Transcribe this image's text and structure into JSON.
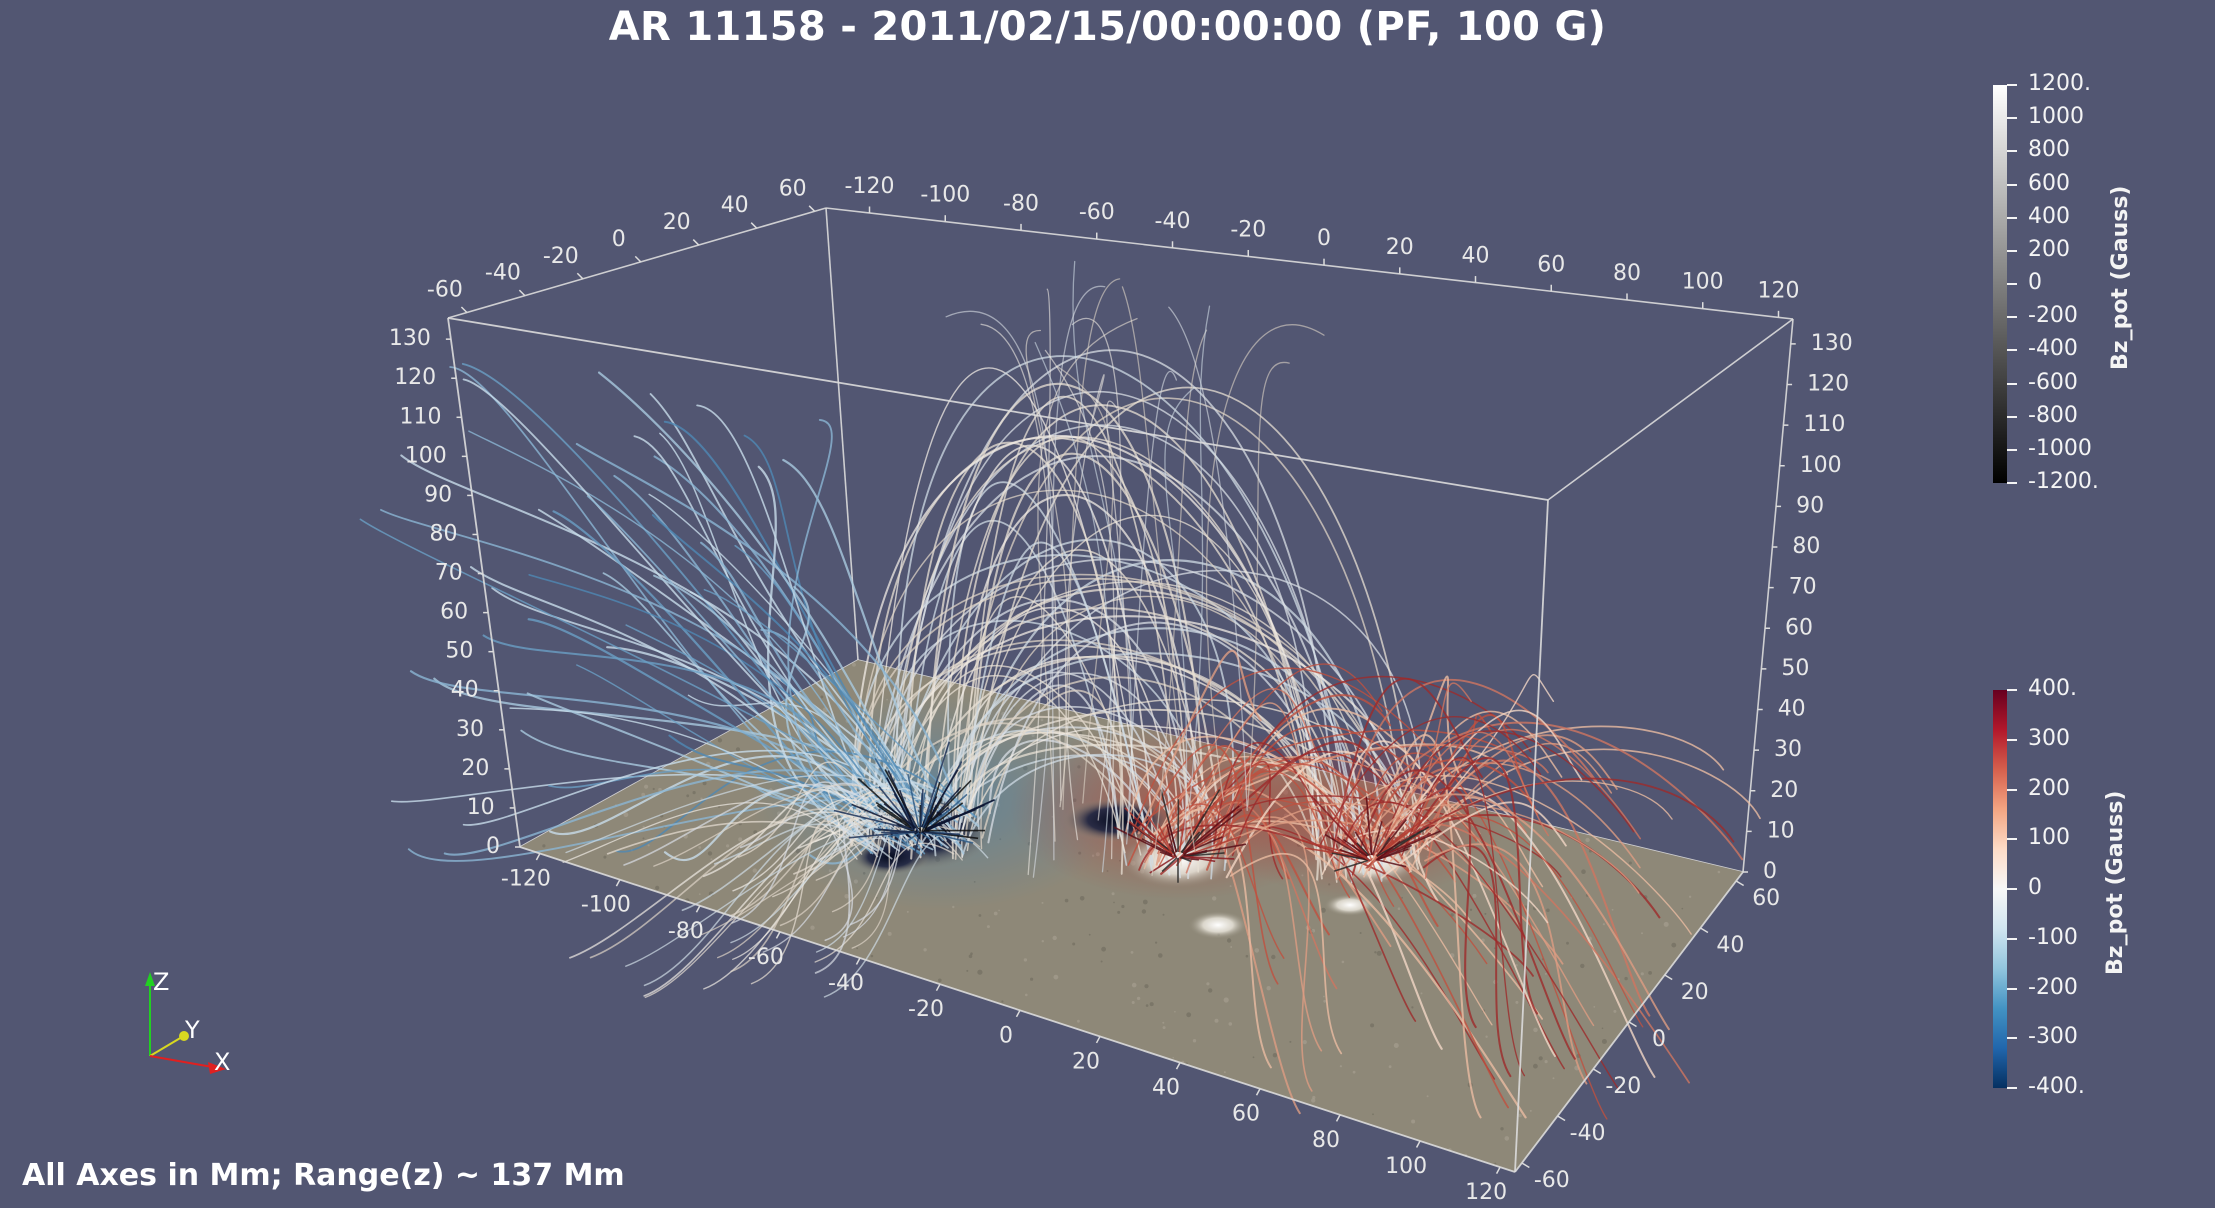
{
  "window": {
    "title": "AR 11158 - 2011/02/15/00:00:00 (PF, 100 G)",
    "footer": "All Axes in Mm; Range(z) ~ 137 Mm"
  },
  "colors": {
    "background": "#525672",
    "plane": "#8e8878",
    "box": "#dcdcdc"
  },
  "axes": {
    "x_front": [
      "-120",
      "-100",
      "-80",
      "-60",
      "-40",
      "-20",
      "0",
      "20",
      "40",
      "60",
      "80",
      "100",
      "120"
    ],
    "x_back": [
      "-120",
      "-100",
      "-80",
      "-60",
      "-40",
      "-20",
      "0",
      "20",
      "40",
      "60",
      "80",
      "100",
      "120"
    ],
    "y_left_top": [
      "-60",
      "-40",
      "-20",
      "0",
      "20",
      "40",
      "60"
    ],
    "y_right_bottom": [
      "60",
      "40",
      "20",
      "0",
      "-20",
      "-40",
      "-60"
    ],
    "z_left": [
      "0",
      "10",
      "20",
      "30",
      "40",
      "50",
      "60",
      "70",
      "80",
      "90",
      "100",
      "110",
      "120",
      "130"
    ],
    "z_right": [
      "0",
      "10",
      "20",
      "30",
      "40",
      "50",
      "60",
      "70",
      "80",
      "90",
      "100",
      "110",
      "120",
      "130"
    ]
  },
  "triad": {
    "x": "X",
    "y": "Y",
    "z": "Z"
  },
  "colorbars": {
    "bz_gray": {
      "title": "Bz_pot (Gauss)",
      "ticks": [
        "1200.",
        "1000",
        "800",
        "600",
        "400",
        "200",
        "0",
        "-200",
        "-400",
        "-600",
        "-800",
        "-1000",
        "-1200."
      ],
      "range": [
        -1200,
        1200
      ]
    },
    "bz_lines": {
      "title": "Bz_pot (Gauss)",
      "ticks": [
        "400.",
        "300",
        "200",
        "100",
        "0",
        "-100",
        "-200",
        "-300",
        "-400."
      ],
      "range": [
        -400,
        400
      ]
    }
  }
}
